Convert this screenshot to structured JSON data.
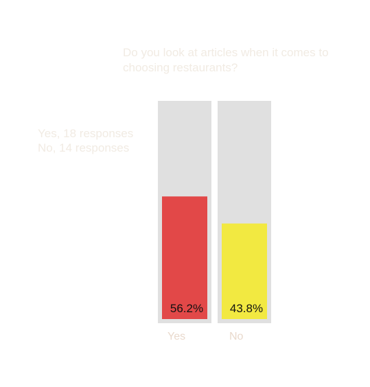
{
  "chart_data": {
    "type": "bar",
    "title": "",
    "subtitle_lines": [
      "Do you look at articles when it comes to",
      "choosing restaurants?"
    ],
    "categories": [
      "Yes",
      "No"
    ],
    "values": [
      56.2,
      43.8
    ],
    "value_labels": [
      "56.2%",
      "43.8%"
    ],
    "responses_text": [
      "Yes, 18 responses",
      "No, 14 responses"
    ],
    "ylim": [
      0,
      100
    ],
    "colors": [
      "#e24848",
      "#f2e941"
    ],
    "track_color": "#e0e0e0",
    "grid": false
  }
}
